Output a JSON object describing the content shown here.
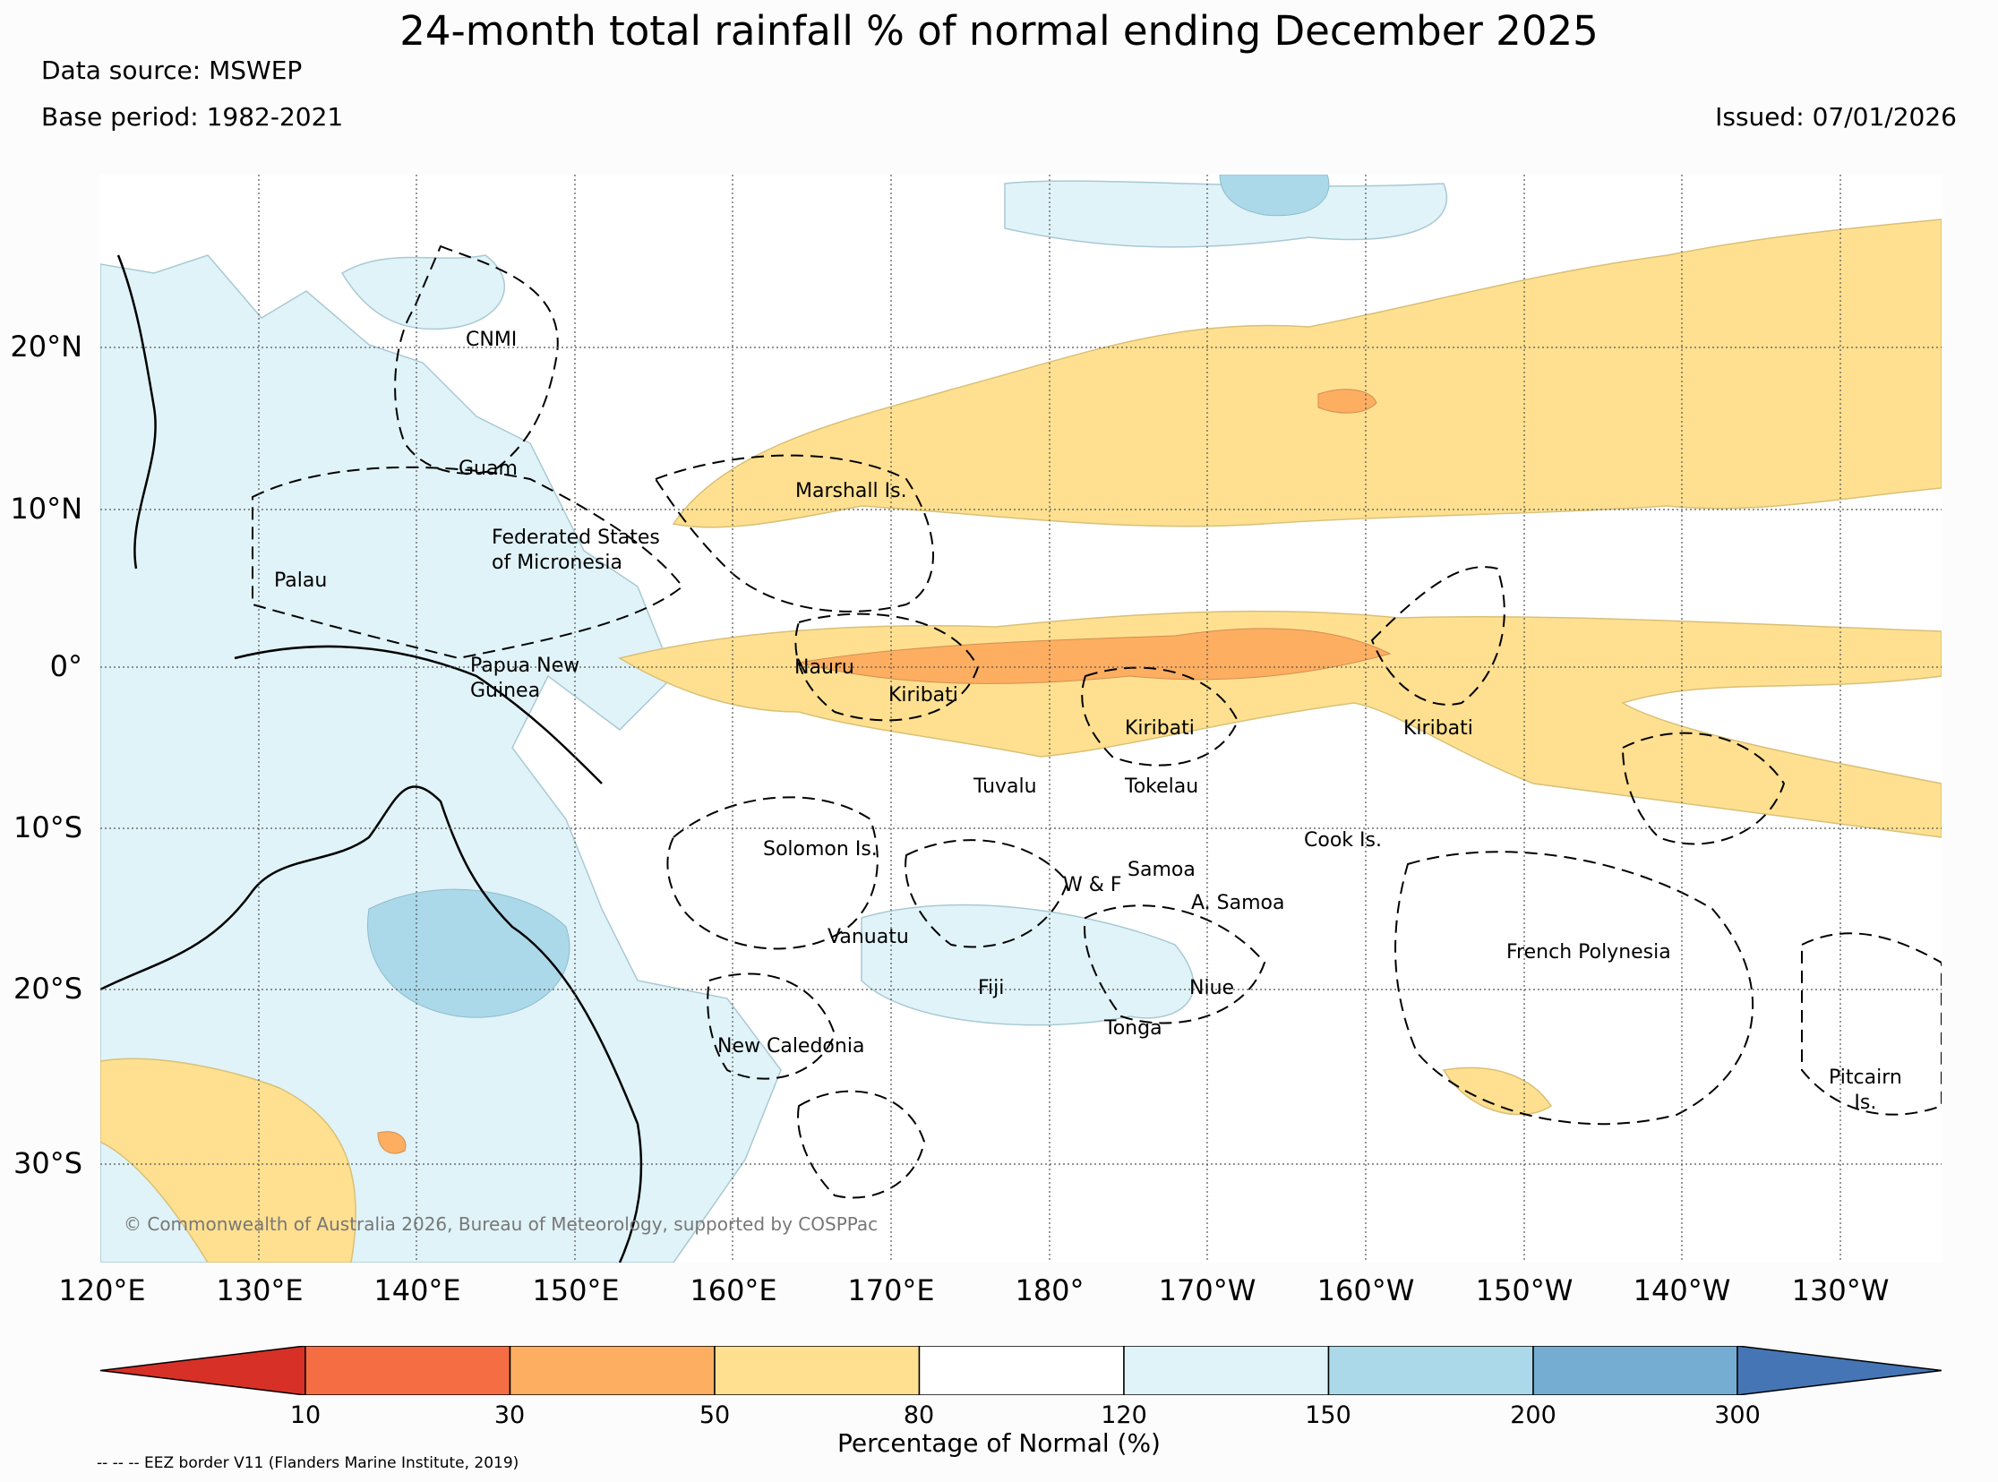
{
  "header": {
    "title": "24-month total rainfall % of normal ending December 2025",
    "data_source": "Data source: MSWEP",
    "base_period": "Base period: 1982-2021",
    "issued": "Issued: 07/01/2026"
  },
  "map": {
    "lat_labels": [
      "20°N",
      "10°N",
      "0°",
      "10°S",
      "20°S",
      "30°S"
    ],
    "lon_labels": [
      "120°E",
      "130°E",
      "140°E",
      "150°E",
      "160°E",
      "170°E",
      "180°",
      "170°W",
      "160°W",
      "150°W",
      "140°W",
      "130°W"
    ],
    "regions": [
      {
        "name": "CNMI"
      },
      {
        "name": "Guam"
      },
      {
        "name": "Marshall Is."
      },
      {
        "name": "Federated States\nof Micronesia"
      },
      {
        "name": "Palau"
      },
      {
        "name": "Papua New\nGuinea"
      },
      {
        "name": "Nauru"
      },
      {
        "name": "Kiribati"
      },
      {
        "name": "Kiribati"
      },
      {
        "name": "Kiribati"
      },
      {
        "name": "Tuvalu"
      },
      {
        "name": "Tokelau"
      },
      {
        "name": "Solomon Is."
      },
      {
        "name": "Samoa"
      },
      {
        "name": "W & F"
      },
      {
        "name": "A. Samoa"
      },
      {
        "name": "Cook Is."
      },
      {
        "name": "Vanuatu"
      },
      {
        "name": "Fiji"
      },
      {
        "name": "Niue"
      },
      {
        "name": "Tonga"
      },
      {
        "name": "French Polynesia"
      },
      {
        "name": "New Caledonia"
      },
      {
        "name": "Pitcairn\nIs."
      }
    ],
    "copyright": "© Commonwealth of Australia 2026, Bureau of Meteorology, supported by COSPPac"
  },
  "colorbar": {
    "title": "Percentage of Normal (%)",
    "ticks": [
      "10",
      "30",
      "50",
      "80",
      "120",
      "150",
      "200",
      "300"
    ],
    "colors": [
      "#d73027",
      "#f46d43",
      "#fdae61",
      "#fee090",
      "#ffffff",
      "#e0f3f8",
      "#abd9e9",
      "#74add1",
      "#4575b4"
    ]
  },
  "footnote": "-- -- -- EEZ border V11 (Flanders Marine Institute, 2019)"
}
